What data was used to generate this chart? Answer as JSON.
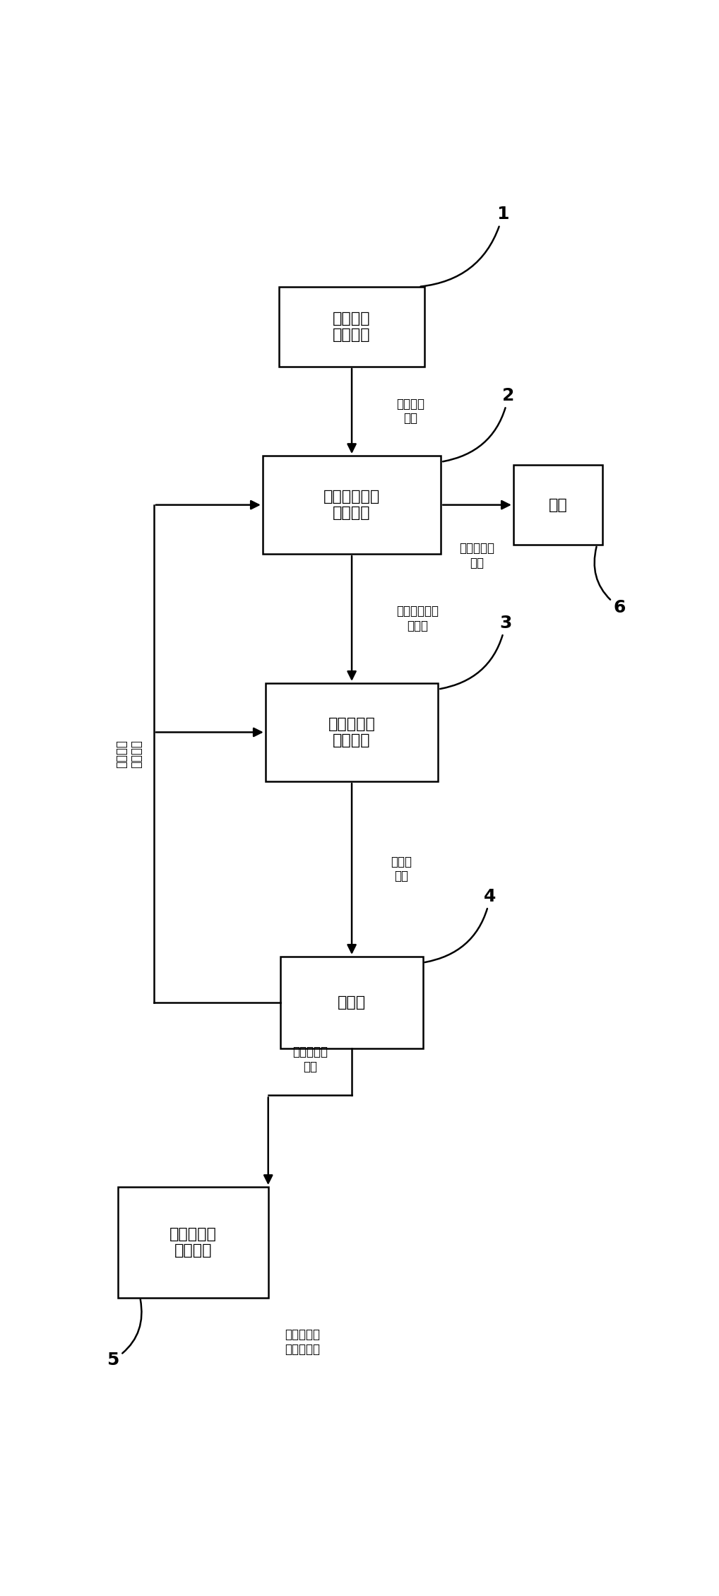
{
  "bg_color": "#ffffff",
  "box1_label": "接收目标\n需求信息",
  "box2_label": "发动机进气量\n控制单元",
  "box3_label": "进气量控制\n参数获取",
  "box4_label": "发动机",
  "box5_label": "发动机控制\n参数调整",
  "box6_label": "电机",
  "arrow12_label": "目标需求\n信号",
  "arrow23_label": "发动机进气量\n目标值",
  "arrow34_label": "控制量\n指令",
  "arrow26_label": "发动机转矩\n需求",
  "arrow45_label": "发动机运行\n参数",
  "left_label": "当前控制\n参数状态",
  "bottom_label": "发动机参考\n参数数据库",
  "num1": "1",
  "num2": "2",
  "num3": "3",
  "num4": "4",
  "num5": "5",
  "num6": "6"
}
